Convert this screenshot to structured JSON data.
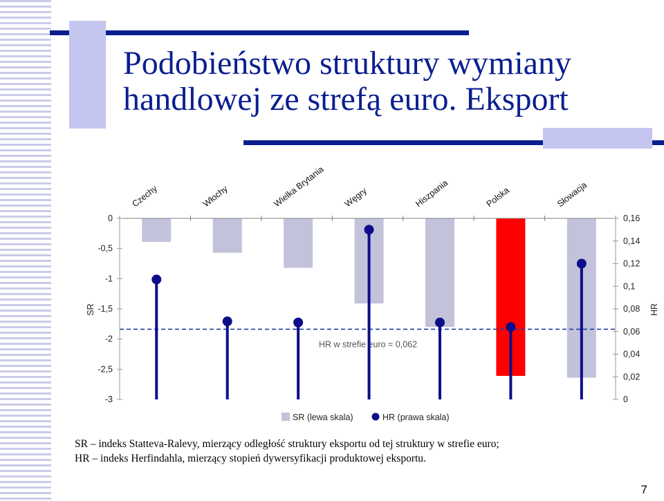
{
  "slide": {
    "title_line1": "Podobieństwo struktury wymiany",
    "title_line2": "handlowej ze strefą euro. Eksport",
    "footnote_line1": "SR – indeks Statteva-Ralevy, mierzący odległość struktury eksportu od tej struktury w strefie euro;",
    "footnote_line2": "HR – indeks Herfindahla, mierzący stopień dywersyfikacji produktowej eksportu.",
    "page_number": "7"
  },
  "colors": {
    "accent": "#0a1f8f",
    "bar_default": "#c2c3db",
    "bar_highlight": "#ff0000",
    "hr_series": "#0d0d8a",
    "reference_line": "#1f3f9f"
  },
  "chart_data": {
    "type": "bar",
    "categories": [
      "Czechy",
      "Włochy",
      "Wielka Brytania",
      "Węgry",
      "Hiszpania",
      "Polska",
      "Słowacja"
    ],
    "highlight_category": "Polska",
    "y_left": {
      "label": "SR",
      "range": [
        -3,
        0
      ],
      "ticks": [
        "0",
        "-0,5",
        "-1",
        "-1,5",
        "-2",
        "-2,5",
        "-3"
      ]
    },
    "y_right": {
      "label": "HR",
      "range": [
        0,
        0.16
      ],
      "ticks": [
        "0,16",
        "0,14",
        "0,12",
        "0,1",
        "0,08",
        "0,06",
        "0,04",
        "0,02",
        "0"
      ]
    },
    "series": [
      {
        "name": "SR (lewa skala)",
        "type": "bar",
        "axis": "left",
        "values": [
          -0.39,
          -0.57,
          -0.82,
          -1.41,
          -1.8,
          -2.61,
          -2.64
        ]
      },
      {
        "name": "HR (prawa skala)",
        "type": "lollipop",
        "axis": "right",
        "values": [
          0.106,
          0.069,
          0.068,
          0.15,
          0.068,
          0.064,
          0.12
        ]
      }
    ],
    "reference_line": {
      "axis": "right",
      "value": 0.062,
      "label": "HR w strefie euro = 0,062"
    },
    "legend_position": "bottom"
  }
}
